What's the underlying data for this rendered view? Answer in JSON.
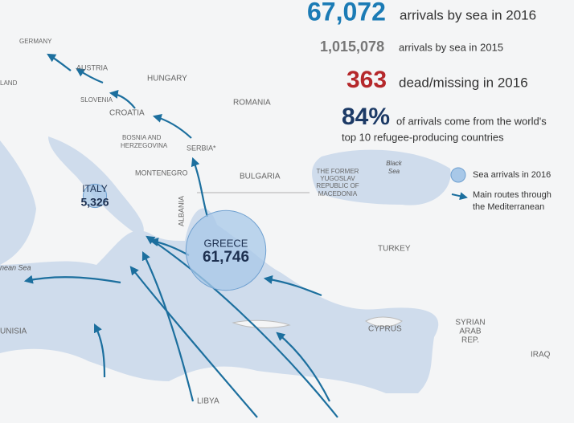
{
  "stats": [
    {
      "number": "67,072",
      "text": "arrivals by sea in 2016"
    },
    {
      "number": "1,015,078",
      "text": "arrivals by sea in 2015"
    },
    {
      "number": "363",
      "text": "dead/missing in 2016"
    },
    {
      "number": "84%",
      "text_lines": [
        "of arrivals come from the world's",
        "top 10 refugee-producing countries"
      ]
    }
  ],
  "bubbles": [
    {
      "label": "GREECE",
      "value": 61746,
      "value_label": "61,746"
    },
    {
      "label": "ITALY",
      "value": 5326,
      "value_label": "5,326"
    }
  ],
  "countries": [
    "GERMANY",
    "AUSTRIA",
    "HUNGARY",
    "SLOVENIA",
    "ROMANIA",
    "CROATIA",
    "SERBIA*",
    "MONTENEGRO",
    "BULGARIA",
    "ALBANIA",
    "TURKEY",
    "CYPRUS",
    "IRAQ",
    "LIBYA",
    "LAND",
    "UNISIA"
  ],
  "multiline_countries": [
    [
      "BOSNIA AND",
      "HERZEGOVINA"
    ],
    [
      "THE FORMER",
      "YUGOSLAV",
      "REPUBLIC OF",
      "MACEDONIA"
    ],
    [
      "SYRIAN",
      "ARAB",
      "REP."
    ]
  ],
  "seas": [
    [
      "Black",
      "Sea"
    ],
    [
      "nean Sea"
    ]
  ],
  "legend": {
    "bubble": "Sea arrivals in 2016",
    "routes": [
      "Main routes through",
      "the Mediterranean"
    ]
  }
}
